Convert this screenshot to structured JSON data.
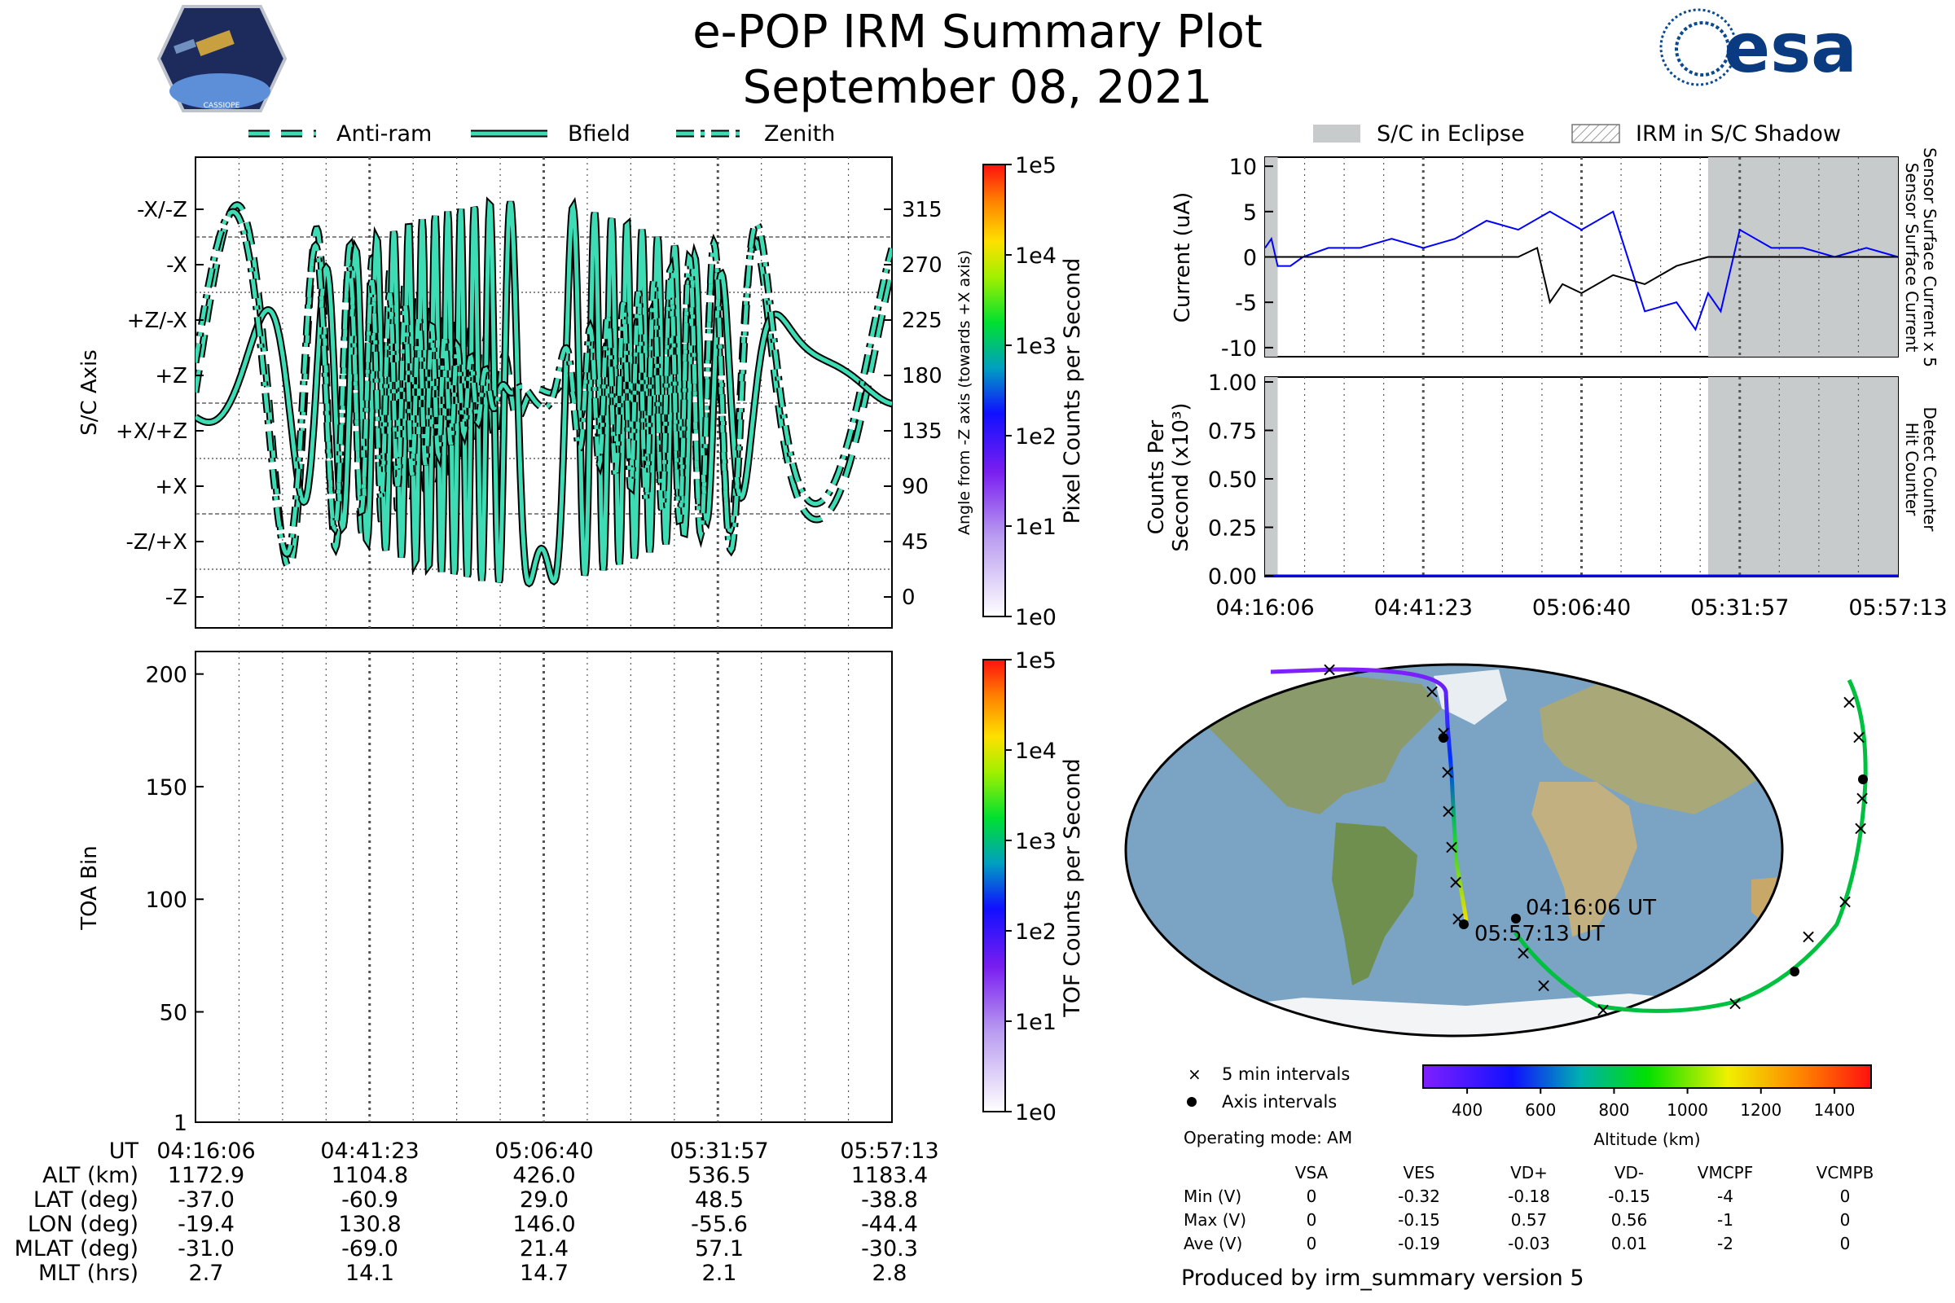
{
  "header": {
    "title": "e-POP IRM Summary Plot",
    "date": "September 08, 2021",
    "cassiope_logo_text": "CASSIOPE",
    "esa_logo_text": "esa"
  },
  "colors": {
    "trace_fill": "#3ddcb4",
    "trace_edge": "#000000",
    "eclipse": "#c8cbcb",
    "current_blue": "#0000ff",
    "current_black": "#000000"
  },
  "legend_top_left": [
    "Anti-ram",
    "Bfield",
    "Zenith"
  ],
  "legend_top_right": [
    "S/C in Eclipse",
    "IRM in S/C Shadow"
  ],
  "time_ticks": [
    "04:16:06",
    "04:41:23",
    "05:06:40",
    "05:31:57",
    "05:57:13"
  ],
  "panel_sc_axis": {
    "ylabel": "S/C Axis",
    "left_ticks": [
      "-X/-Z",
      "-X",
      "+Z/-X",
      "+Z",
      "+X/+Z",
      "+X",
      "-Z/+X",
      "-Z"
    ],
    "right_ticks": [
      "315",
      "270",
      "225",
      "180",
      "135",
      "90",
      "45",
      "0"
    ],
    "right_label": "Angle from -Z axis (towards +X axis)",
    "colorbar_label": "Pixel Counts per Second",
    "colorbar_ticks": [
      "1e5",
      "1e4",
      "1e3",
      "1e2",
      "1e1",
      "1e0"
    ]
  },
  "panel_toa": {
    "ylabel": "TOA Bin",
    "ticks": [
      "200",
      "150",
      "100",
      "50",
      "1"
    ],
    "colorbar_label": "TOF Counts per Second",
    "colorbar_ticks": [
      "1e5",
      "1e4",
      "1e3",
      "1e2",
      "1e1",
      "1e0"
    ]
  },
  "panel_current": {
    "ylabel": "Current (uA)",
    "ticks": [
      "10",
      "5",
      "0",
      "-5",
      "-10"
    ],
    "right_label_blue": "Sensor Surface Current x 5",
    "right_label_black": "Sensor Surface Current"
  },
  "panel_counts": {
    "ylabel_1": "Counts Per",
    "ylabel_2": "Second (x10³)",
    "ticks": [
      "1.00",
      "0.75",
      "0.50",
      "0.25",
      "0.00"
    ],
    "right_label_blue": "Detect Counter",
    "right_label_black": "Hit Counter"
  },
  "chart_data": [
    {
      "type": "line",
      "title": "S/C Axis",
      "series": [
        {
          "name": "Anti-ram"
        },
        {
          "name": "Bfield"
        },
        {
          "name": "Zenith"
        }
      ],
      "ylim_deg": [
        0,
        360
      ]
    },
    {
      "type": "heatmap",
      "ylabel": "TOA Bin",
      "ylim": [
        1,
        210
      ],
      "values": []
    },
    {
      "type": "line",
      "ylabel": "Current (uA)",
      "ylim": [
        -11,
        11
      ],
      "eclipse_spans": [
        [
          "04:16:06",
          "04:18:00"
        ],
        [
          "05:28:00",
          "05:57:13"
        ]
      ],
      "series": [
        {
          "name": "Sensor Surface Current x 5",
          "color": "#0000ff",
          "x_frac": [
            0,
            0.01,
            0.02,
            0.04,
            0.06,
            0.1,
            0.15,
            0.2,
            0.25,
            0.3,
            0.35,
            0.4,
            0.45,
            0.5,
            0.55,
            0.6,
            0.65,
            0.68,
            0.7,
            0.72,
            0.75,
            0.8,
            0.85,
            0.9,
            0.95,
            1.0
          ],
          "values": [
            1,
            2,
            -1,
            -1,
            0,
            1,
            1,
            2,
            1,
            2,
            4,
            3,
            5,
            3,
            5,
            -6,
            -5,
            -8,
            -4,
            -6,
            3,
            1,
            1,
            0,
            1,
            0
          ]
        },
        {
          "name": "Sensor Surface Current",
          "color": "#000000",
          "x_frac": [
            0,
            0.05,
            0.1,
            0.2,
            0.3,
            0.4,
            0.43,
            0.45,
            0.47,
            0.5,
            0.55,
            0.6,
            0.65,
            0.7,
            0.8,
            0.9,
            1.0
          ],
          "values": [
            0,
            0,
            0,
            0,
            0,
            0,
            1,
            -5,
            -3,
            -4,
            -2,
            -3,
            -1,
            0,
            0,
            0,
            0
          ]
        }
      ]
    },
    {
      "type": "line",
      "ylabel": "Counts Per Second (x10³)",
      "ylim": [
        0,
        1
      ],
      "series": [
        {
          "name": "Detect Counter",
          "values": [
            0,
            0
          ]
        },
        {
          "name": "Hit Counter",
          "values": [
            0,
            0
          ]
        }
      ]
    }
  ],
  "ephemeris": {
    "labels": [
      "UT",
      "ALT (km)",
      "LAT (deg)",
      "LON (deg)",
      "MLAT (deg)",
      "MLT (hrs)"
    ],
    "rows": [
      [
        "04:16:06",
        "04:41:23",
        "05:06:40",
        "05:31:57",
        "05:57:13"
      ],
      [
        "1172.9",
        "1104.8",
        "426.0",
        "536.5",
        "1183.4"
      ],
      [
        "-37.0",
        "-60.9",
        "29.0",
        "48.5",
        "-38.8"
      ],
      [
        "-19.4",
        "130.8",
        "146.0",
        "-55.6",
        "-44.4"
      ],
      [
        "-31.0",
        "-69.0",
        "21.4",
        "57.1",
        "-30.3"
      ],
      [
        "2.7",
        "14.1",
        "14.7",
        "2.1",
        "2.8"
      ]
    ]
  },
  "map": {
    "start_label": "04:16:06 UT",
    "end_label": "05:57:13 UT",
    "legend_x": "5 min intervals",
    "legend_dot": "Axis intervals",
    "mode": "Operating mode: AM",
    "altitude_label": "Altitude (km)",
    "altitude_ticks": [
      "400",
      "600",
      "800",
      "1000",
      "1200",
      "1400"
    ]
  },
  "voltages": {
    "columns": [
      "VSA",
      "VES",
      "VD+",
      "VD-",
      "VMCPF",
      "VCMPB"
    ],
    "rows": [
      {
        "label": "Min (V)",
        "values": [
          "0",
          "-0.32",
          "-0.18",
          "-0.15",
          "-4",
          "0"
        ]
      },
      {
        "label": "Max (V)",
        "values": [
          "0",
          "-0.15",
          "0.57",
          "0.56",
          "-1",
          "0"
        ]
      },
      {
        "label": "Ave (V)",
        "values": [
          "0",
          "-0.19",
          "-0.03",
          "0.01",
          "-2",
          "0"
        ]
      }
    ]
  },
  "footer": "Produced by irm_summary version 5"
}
